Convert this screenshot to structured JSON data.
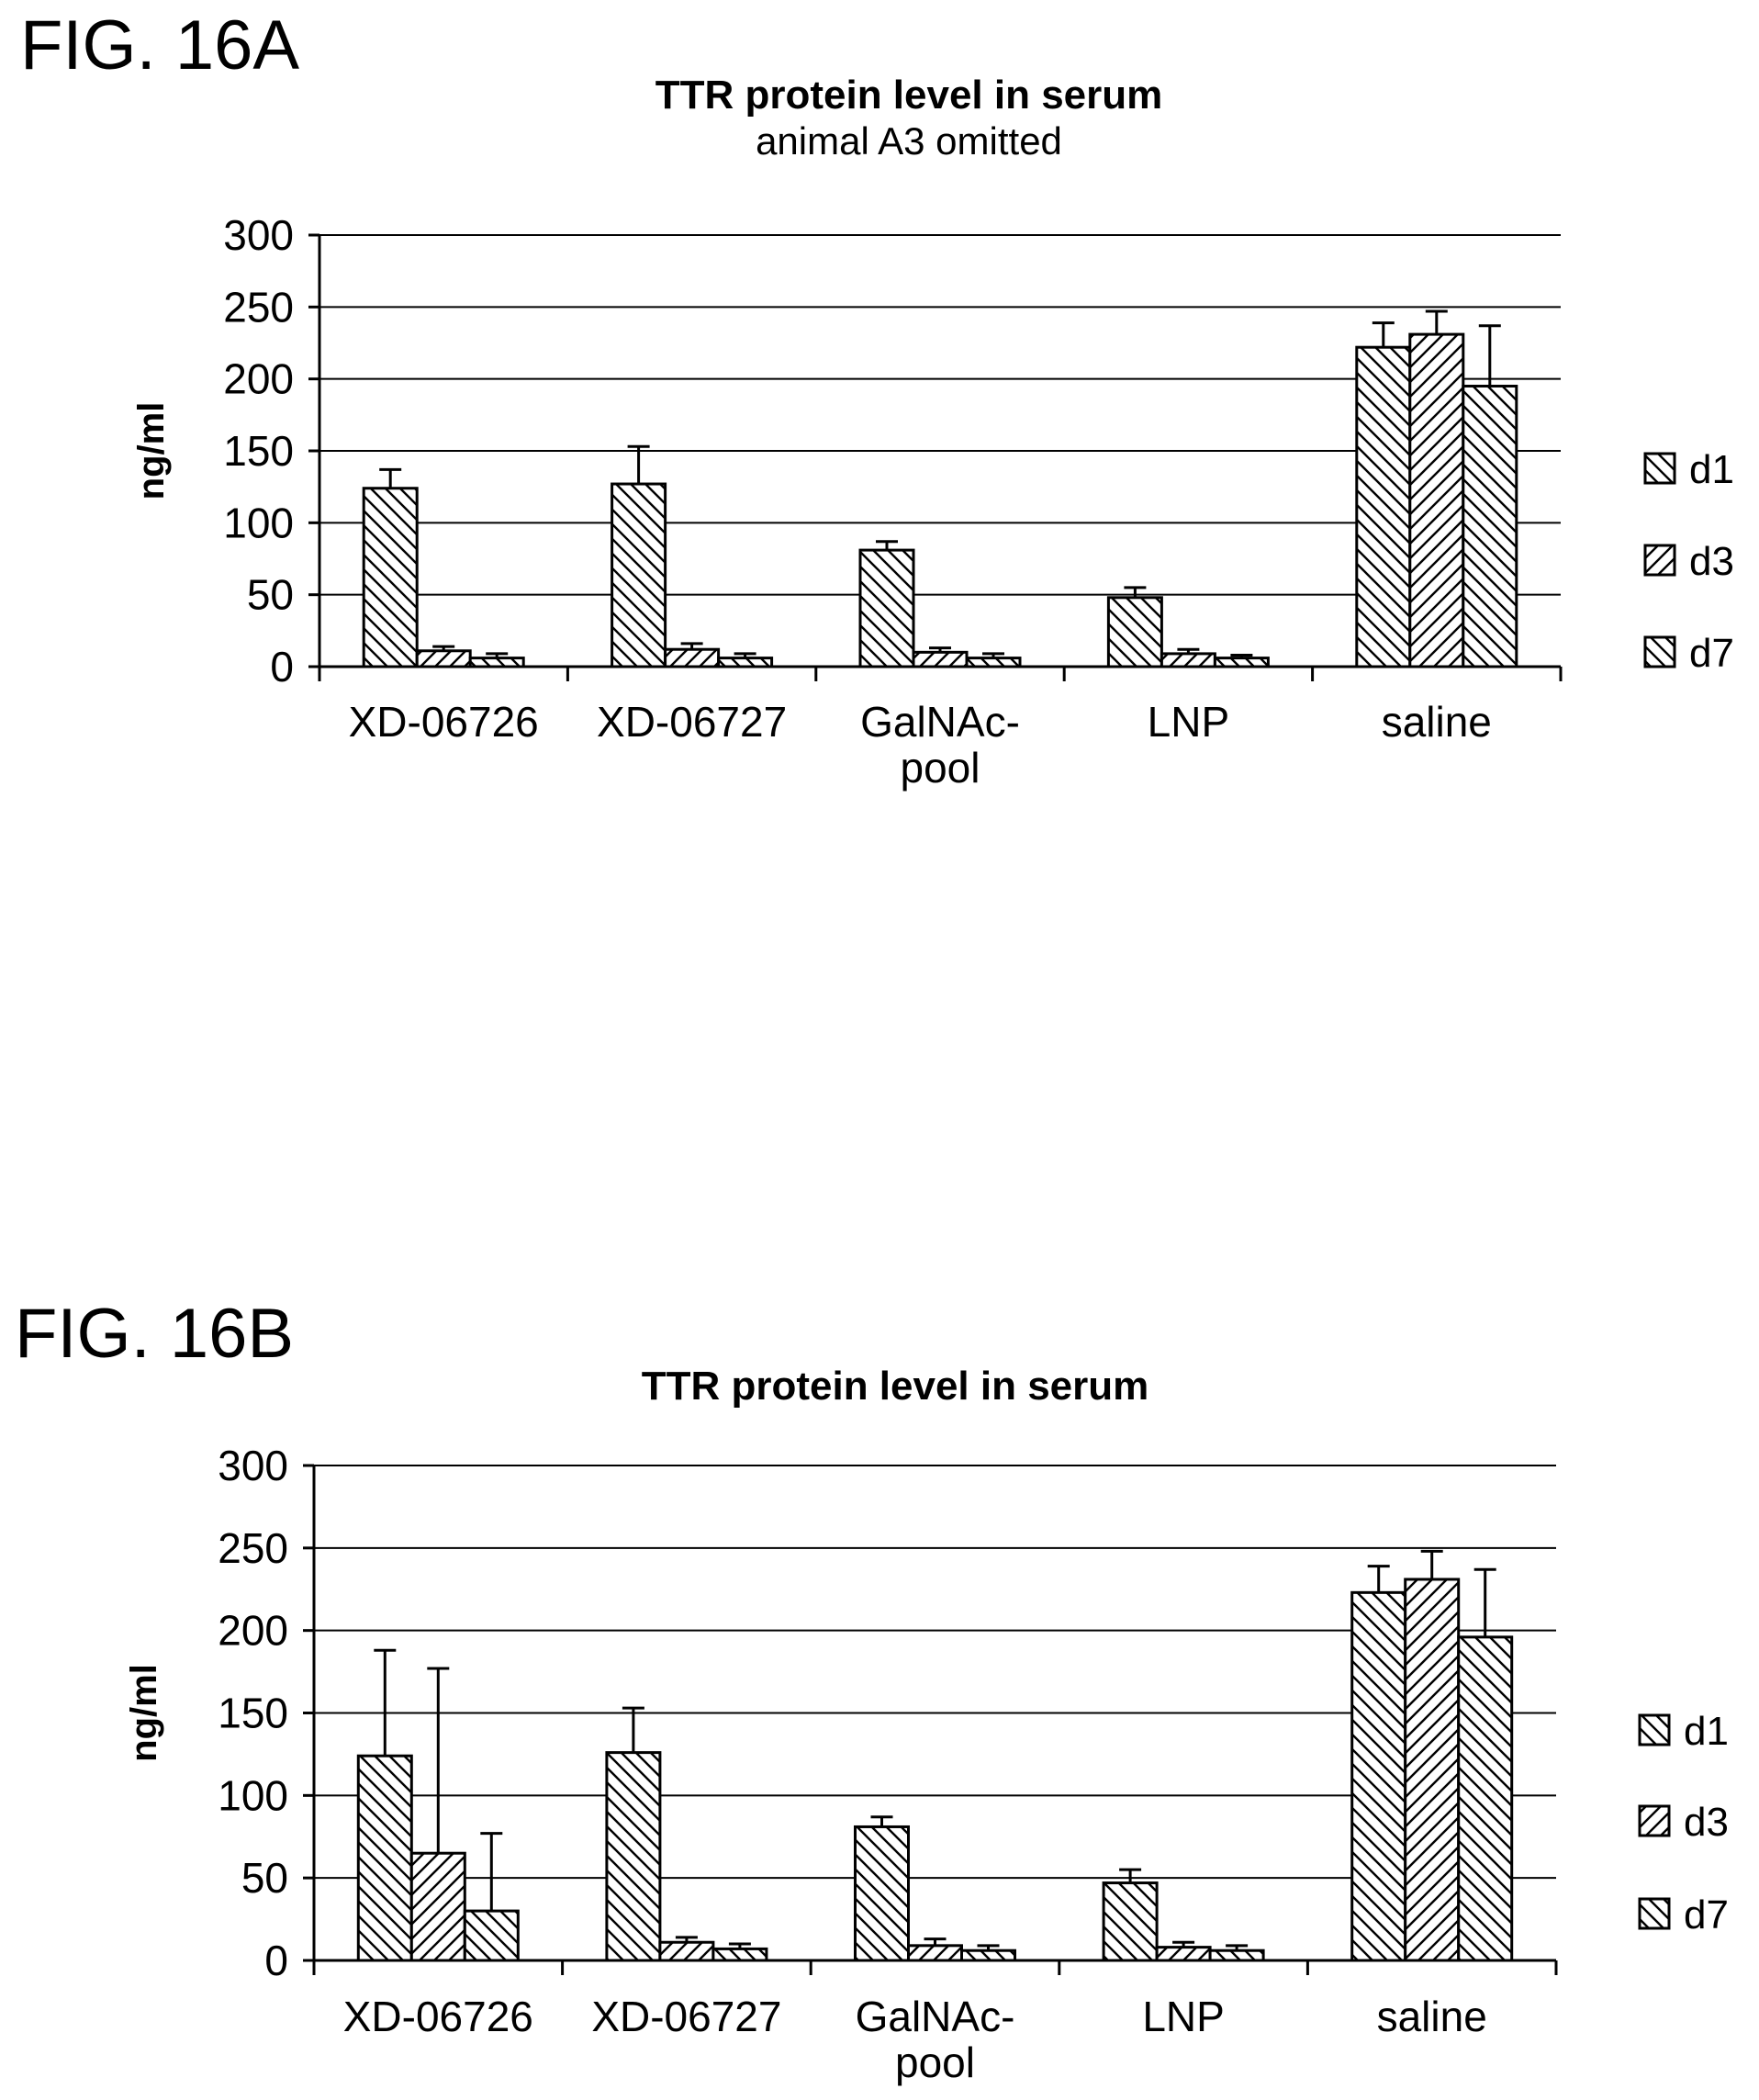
{
  "chart_data": [
    {
      "type": "bar",
      "figure_label": "FIG. 16A",
      "title": "TTR protein level in serum",
      "subtitle": "animal A3 omitted",
      "xlabel": "",
      "ylabel": "ng/ml",
      "ylim": [
        0,
        300
      ],
      "yticks": [
        0,
        50,
        100,
        150,
        200,
        250,
        300
      ],
      "grid": true,
      "legend_position": "right",
      "categories": [
        "XD-06726",
        "XD-06727",
        "GalNAc-\npool",
        "LNP",
        "saline"
      ],
      "series": [
        {
          "name": "d1",
          "pattern": "back-diagonal",
          "values": [
            124,
            127,
            81,
            48,
            222
          ],
          "errors": [
            13,
            26,
            6,
            7,
            17
          ]
        },
        {
          "name": "d3",
          "pattern": "forward-diagonal",
          "values": [
            11,
            12,
            10,
            9,
            231
          ],
          "errors": [
            3,
            4,
            3,
            3,
            16
          ]
        },
        {
          "name": "d7",
          "pattern": "back-diagonal",
          "values": [
            6,
            6,
            6,
            6,
            195
          ],
          "errors": [
            3,
            3,
            3,
            2,
            42
          ]
        }
      ]
    },
    {
      "type": "bar",
      "figure_label": "FIG. 16B",
      "title": "TTR protein level in serum",
      "subtitle": "",
      "xlabel": "",
      "ylabel": "ng/ml",
      "ylim": [
        0,
        300
      ],
      "yticks": [
        0,
        50,
        100,
        150,
        200,
        250,
        300
      ],
      "grid": true,
      "legend_position": "right",
      "categories": [
        "XD-06726",
        "XD-06727",
        "GalNAc-\npool",
        "LNP",
        "saline"
      ],
      "series": [
        {
          "name": "d1",
          "pattern": "back-diagonal",
          "values": [
            124,
            126,
            81,
            47,
            223
          ],
          "errors": [
            64,
            27,
            6,
            8,
            16
          ]
        },
        {
          "name": "d3",
          "pattern": "forward-diagonal",
          "values": [
            65,
            11,
            9,
            8,
            231
          ],
          "errors": [
            112,
            3,
            4,
            3,
            17
          ]
        },
        {
          "name": "d7",
          "pattern": "back-diagonal",
          "values": [
            30,
            7,
            6,
            6,
            196
          ],
          "errors": [
            47,
            3,
            3,
            3,
            41
          ]
        }
      ]
    }
  ]
}
